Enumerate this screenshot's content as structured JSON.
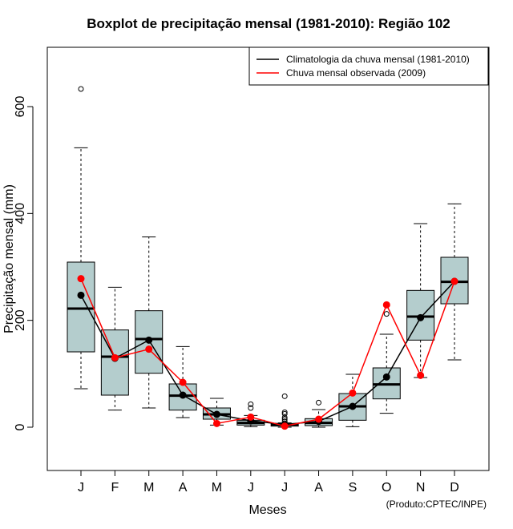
{
  "chart_data": {
    "type": "boxplot",
    "title": "Boxplot de precipitação mensal (1981-2010): Região 102",
    "xlabel": "Meses",
    "ylabel": "Precipitação mensal (mm)",
    "ylim": [
      -80,
      710
    ],
    "yticks": [
      0,
      200,
      400,
      600
    ],
    "categories": [
      "J",
      "F",
      "M",
      "A",
      "M",
      "J",
      "J",
      "A",
      "S",
      "O",
      "N",
      "D"
    ],
    "boxes": [
      {
        "whisker_low": 72,
        "q1": 141,
        "median": 222,
        "q3": 309,
        "whisker_high": 523,
        "outliers": [
          633
        ]
      },
      {
        "whisker_low": 32,
        "q1": 60,
        "median": 132,
        "q3": 182,
        "whisker_high": 262,
        "outliers": []
      },
      {
        "whisker_low": 36,
        "q1": 101,
        "median": 165,
        "q3": 218,
        "whisker_high": 356,
        "outliers": []
      },
      {
        "whisker_low": 18,
        "q1": 32,
        "median": 59,
        "q3": 81,
        "whisker_high": 151,
        "outliers": []
      },
      {
        "whisker_low": 4,
        "q1": 15,
        "median": 24,
        "q3": 36,
        "whisker_high": 54,
        "outliers": []
      },
      {
        "whisker_low": 1,
        "q1": 4,
        "median": 8,
        "q3": 13,
        "whisker_high": 22,
        "outliers": [
          36,
          43
        ]
      },
      {
        "whisker_low": 0,
        "q1": 2,
        "median": 5,
        "q3": 7,
        "whisker_high": 8,
        "outliers": [
          11,
          15,
          18,
          25,
          28,
          58
        ]
      },
      {
        "whisker_low": 0,
        "q1": 3,
        "median": 8,
        "q3": 16,
        "whisker_high": 33,
        "outliers": [
          46
        ]
      },
      {
        "whisker_low": 1,
        "q1": 13,
        "median": 39,
        "q3": 63,
        "whisker_high": 99,
        "outliers": []
      },
      {
        "whisker_low": 26,
        "q1": 53,
        "median": 80,
        "q3": 111,
        "whisker_high": 174,
        "outliers": [
          212
        ]
      },
      {
        "whisker_low": 93,
        "q1": 163,
        "median": 207,
        "q3": 256,
        "whisker_high": 381,
        "outliers": []
      },
      {
        "whisker_low": 126,
        "q1": 231,
        "median": 272,
        "q3": 318,
        "whisker_high": 418,
        "outliers": []
      }
    ],
    "series": [
      {
        "name": "Climatologia da chuva mensal (1981-2010)",
        "color": "#000000",
        "values": [
          247,
          129,
          163,
          60,
          24,
          12,
          5,
          11,
          39,
          94,
          205,
          273
        ]
      },
      {
        "name": "Chuva mensal observada (2009)",
        "color": "#ff0000",
        "values": [
          278,
          130,
          146,
          84,
          7,
          19,
          2,
          15,
          64,
          229,
          97,
          273
        ]
      }
    ],
    "box_fill": "#b4cdcd",
    "legend_position": "top-right",
    "credit": "(Produto:CPTEC/INPE)"
  }
}
